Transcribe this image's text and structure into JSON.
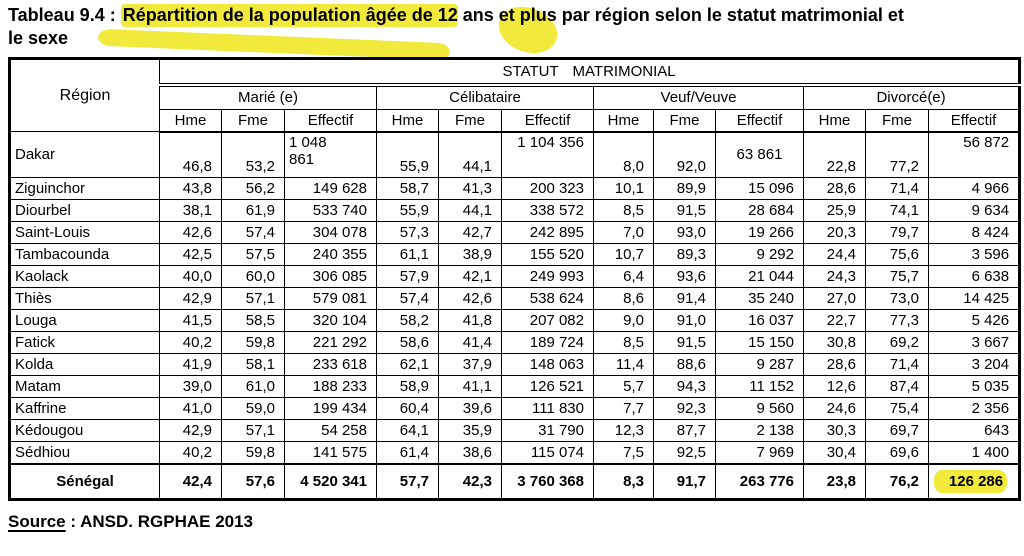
{
  "colors": {
    "highlight": "#f1e93b"
  },
  "title": {
    "prefix": "Tableau 9.4 : ",
    "highlight": "Répartition de la population âgée de 12",
    "suffix": " ans et plus par région selon le statut matrimonial et le sexe"
  },
  "source": {
    "label": "Source",
    "rest": " : ANSD. RGPHAE 2013"
  },
  "table": {
    "region_header": "Région",
    "top_header": "STATUT MATRIMONIAL",
    "groups": [
      {
        "label": "Marié (e)"
      },
      {
        "label": "Célibataire"
      },
      {
        "label": "Veuf/Veuve"
      },
      {
        "label": "Divorcé(e)"
      }
    ],
    "sub_headers": [
      "Hme",
      "Fme",
      "Effectif"
    ],
    "rows": [
      {
        "region": "Dakar",
        "values": [
          "46,8",
          "53,2",
          "1 048\n861",
          "55,9",
          "44,1",
          "1 104 356",
          "8,0",
          "92,0",
          "63 861",
          "22,8",
          "77,2",
          "56 872"
        ],
        "row_class": "row-dakar",
        "cell_classes": [
          "num v-b",
          "num v-b",
          "v-t a-l pre",
          "num v-b",
          "num v-b",
          "num v-t",
          "num v-b",
          "num v-b",
          "v-m a-c",
          "num v-b",
          "num v-b",
          "num v-t"
        ]
      },
      {
        "region": "Ziguinchor",
        "values": [
          "43,8",
          "56,2",
          "149 628",
          "58,7",
          "41,3",
          "200 323",
          "10,1",
          "89,9",
          "15 096",
          "28,6",
          "71,4",
          "4 966"
        ]
      },
      {
        "region": "Diourbel",
        "values": [
          "38,1",
          "61,9",
          "533 740",
          "55,9",
          "44,1",
          "338 572",
          "8,5",
          "91,5",
          "28 684",
          "25,9",
          "74,1",
          "9 634"
        ]
      },
      {
        "region": "Saint-Louis",
        "values": [
          "42,6",
          "57,4",
          "304 078",
          "57,3",
          "42,7",
          "242 895",
          "7,0",
          "93,0",
          "19 266",
          "20,3",
          "79,7",
          "8 424"
        ]
      },
      {
        "region": "Tambacounda",
        "values": [
          "42,5",
          "57,5",
          "240 355",
          "61,1",
          "38,9",
          "155 520",
          "10,7",
          "89,3",
          "9 292",
          "24,4",
          "75,6",
          "3 596"
        ]
      },
      {
        "region": "Kaolack",
        "values": [
          "40,0",
          "60,0",
          "306 085",
          "57,9",
          "42,1",
          "249 993",
          "6,4",
          "93,6",
          "21 044",
          "24,3",
          "75,7",
          "6 638"
        ]
      },
      {
        "region": "Thiès",
        "values": [
          "42,9",
          "57,1",
          "579 081",
          "57,4",
          "42,6",
          "538 624",
          "8,6",
          "91,4",
          "35 240",
          "27,0",
          "73,0",
          "14 425"
        ]
      },
      {
        "region": "Louga",
        "values": [
          "41,5",
          "58,5",
          "320 104",
          "58,2",
          "41,8",
          "207 082",
          "9,0",
          "91,0",
          "16 037",
          "22,7",
          "77,3",
          "5 426"
        ]
      },
      {
        "region": "Fatick",
        "values": [
          "40,2",
          "59,8",
          "221 292",
          "58,6",
          "41,4",
          "189 724",
          "8,5",
          "91,5",
          "15 150",
          "30,8",
          "69,2",
          "3 667"
        ]
      },
      {
        "region": "Kolda",
        "values": [
          "41,9",
          "58,1",
          "233 618",
          "62,1",
          "37,9",
          "148 063",
          "11,4",
          "88,6",
          "9 287",
          "28,6",
          "71,4",
          "3 204"
        ]
      },
      {
        "region": "Matam",
        "values": [
          "39,0",
          "61,0",
          "188 233",
          "58,9",
          "41,1",
          "126 521",
          "5,7",
          "94,3",
          "11 152",
          "12,6",
          "87,4",
          "5 035"
        ]
      },
      {
        "region": "Kaffrine",
        "values": [
          "41,0",
          "59,0",
          "199 434",
          "60,4",
          "39,6",
          "111 830",
          "7,7",
          "92,3",
          "9 560",
          "24,6",
          "75,4",
          "2 356"
        ]
      },
      {
        "region": "Kédougou",
        "values": [
          "42,9",
          "57,1",
          "54 258",
          "64,1",
          "35,9",
          "31 790",
          "12,3",
          "87,7",
          "2 138",
          "30,3",
          "69,7",
          "643"
        ]
      },
      {
        "region": "Sédhiou",
        "values": [
          "40,2",
          "59,8",
          "141 575",
          "61,4",
          "38,6",
          "115 074",
          "7,5",
          "92,5",
          "7 969",
          "30,4",
          "69,6",
          "1 400"
        ]
      }
    ],
    "total_row": {
      "region": "Sénégal",
      "values": [
        "42,4",
        "57,6",
        "4 520 341",
        "57,7",
        "42,3",
        "3 760 368",
        "8,3",
        "91,7",
        "263 776",
        "23,8",
        "76,2",
        "126 286"
      ],
      "row_class": "row-total",
      "highlight_index": 11
    }
  }
}
